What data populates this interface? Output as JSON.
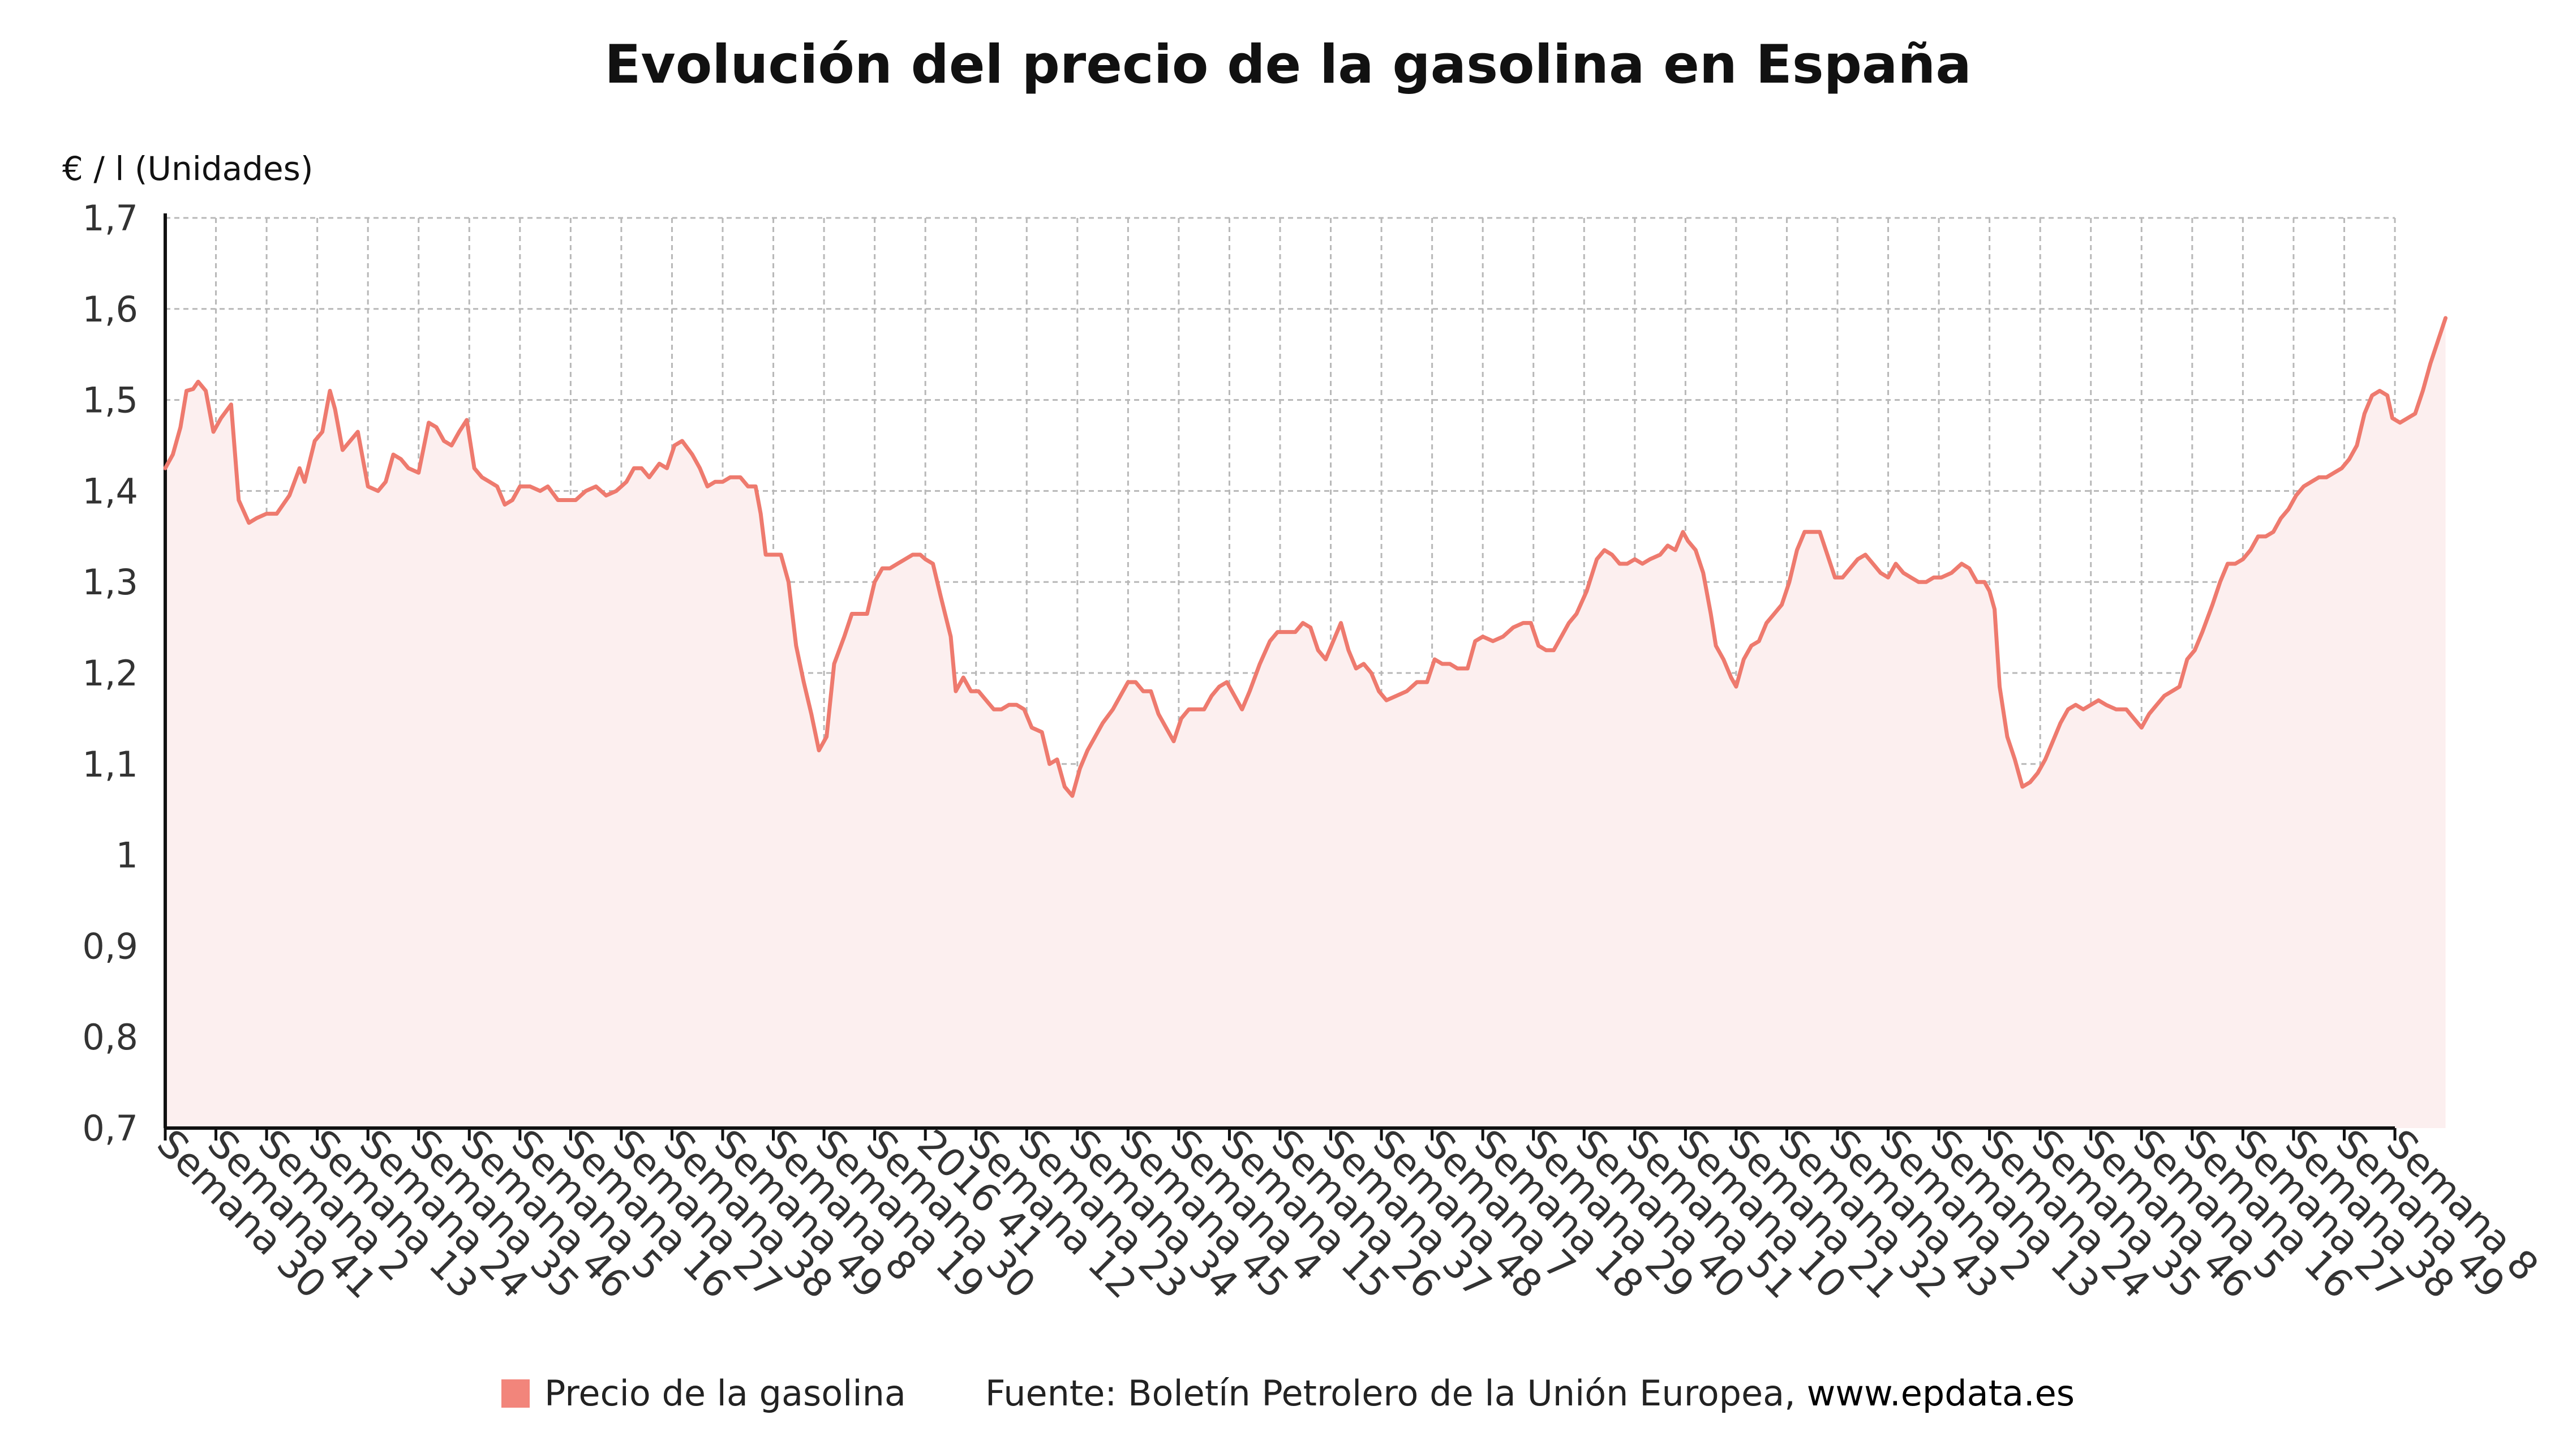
{
  "colors": {
    "series": "#ee7a6e",
    "legend_swatch": "#f2857b",
    "area_fill": "#fcefef",
    "grid": "#b8b8b8"
  },
  "legend": {
    "series_label": "Precio de la gasolina",
    "source_prefix": "Fuente: Boletín Petrolero de la Unión Europea, ",
    "source_url": "www.epdata.es"
  },
  "chart_data": {
    "type": "line",
    "title": "Evolución del precio de la gasolina en España",
    "ylabel": "€ / l (Unidades)",
    "xlabel": "",
    "ylim": [
      0.7,
      1.7
    ],
    "y_ticks": [
      "1,7",
      "1,6",
      "1,5",
      "1,4",
      "1,3",
      "1,2",
      "1,1",
      "1",
      "0,9",
      "0,8",
      "0,7"
    ],
    "x_ticks": [
      "Semana 30",
      "Semana 41",
      "Semana 2",
      "Semana 13",
      "Semana 24",
      "Semana 35",
      "Semana 46",
      "Semana 5",
      "Semana 16",
      "Semana 27",
      "Semana 38",
      "Semana 49",
      "Semana 8",
      "Semana 19",
      "Semana 30",
      "2016 41",
      "Semana 12",
      "Semana 23",
      "Semana 34",
      "Semana 45",
      "Semana 4",
      "Semana 15",
      "Semana 26",
      "Semana 37",
      "Semana 48",
      "Semana 7",
      "Semana 18",
      "Semana 29",
      "Semana 40",
      "Semana 51",
      "Semana 10",
      "Semana 21",
      "Semana 32",
      "Semana 43",
      "Semana 2",
      "Semana 13",
      "Semana 24",
      "Semana 35",
      "Semana 46",
      "Semana 5",
      "Semana 16",
      "Semana 27",
      "Semana 38",
      "Semana 49",
      "Semana 8"
    ],
    "grid": true,
    "legend_position": "bottom",
    "series": [
      {
        "name": "Precio de la gasolina",
        "points": [
          [
            0.0,
            1.425
          ],
          [
            0.15,
            1.44
          ],
          [
            0.3,
            1.47
          ],
          [
            0.42,
            1.51
          ],
          [
            0.55,
            1.512
          ],
          [
            0.65,
            1.52
          ],
          [
            0.8,
            1.51
          ],
          [
            0.95,
            1.465
          ],
          [
            1.1,
            1.48
          ],
          [
            1.3,
            1.495
          ],
          [
            1.45,
            1.39
          ],
          [
            1.65,
            1.365
          ],
          [
            1.8,
            1.37
          ],
          [
            2.0,
            1.375
          ],
          [
            2.2,
            1.375
          ],
          [
            2.45,
            1.395
          ],
          [
            2.65,
            1.425
          ],
          [
            2.75,
            1.41
          ],
          [
            2.95,
            1.455
          ],
          [
            3.1,
            1.465
          ],
          [
            3.25,
            1.51
          ],
          [
            3.35,
            1.49
          ],
          [
            3.5,
            1.445
          ],
          [
            3.65,
            1.455
          ],
          [
            3.8,
            1.465
          ],
          [
            4.0,
            1.405
          ],
          [
            4.2,
            1.4
          ],
          [
            4.35,
            1.41
          ],
          [
            4.5,
            1.44
          ],
          [
            4.65,
            1.435
          ],
          [
            4.8,
            1.425
          ],
          [
            5.0,
            1.42
          ],
          [
            5.2,
            1.475
          ],
          [
            5.35,
            1.47
          ],
          [
            5.5,
            1.455
          ],
          [
            5.65,
            1.45
          ],
          [
            5.8,
            1.465
          ],
          [
            5.95,
            1.478
          ],
          [
            6.1,
            1.425
          ],
          [
            6.25,
            1.415
          ],
          [
            6.4,
            1.41
          ],
          [
            6.55,
            1.405
          ],
          [
            6.7,
            1.385
          ],
          [
            6.85,
            1.39
          ],
          [
            7.0,
            1.405
          ],
          [
            7.2,
            1.405
          ],
          [
            7.4,
            1.4
          ],
          [
            7.55,
            1.405
          ],
          [
            7.75,
            1.39
          ],
          [
            7.95,
            1.39
          ],
          [
            8.1,
            1.39
          ],
          [
            8.3,
            1.4
          ],
          [
            8.5,
            1.405
          ],
          [
            8.7,
            1.395
          ],
          [
            8.9,
            1.4
          ],
          [
            9.1,
            1.41
          ],
          [
            9.25,
            1.425
          ],
          [
            9.4,
            1.425
          ],
          [
            9.55,
            1.415
          ],
          [
            9.75,
            1.43
          ],
          [
            9.9,
            1.425
          ],
          [
            10.05,
            1.45
          ],
          [
            10.2,
            1.455
          ],
          [
            10.4,
            1.44
          ],
          [
            10.55,
            1.425
          ],
          [
            10.7,
            1.405
          ],
          [
            10.85,
            1.41
          ],
          [
            11.0,
            1.41
          ],
          [
            11.15,
            1.415
          ],
          [
            11.35,
            1.415
          ],
          [
            11.5,
            1.405
          ],
          [
            11.65,
            1.405
          ],
          [
            11.75,
            1.375
          ],
          [
            11.85,
            1.33
          ],
          [
            12.0,
            1.33
          ],
          [
            12.15,
            1.33
          ],
          [
            12.3,
            1.3
          ],
          [
            12.45,
            1.23
          ],
          [
            12.6,
            1.19
          ],
          [
            12.75,
            1.155
          ],
          [
            12.9,
            1.115
          ],
          [
            13.05,
            1.13
          ],
          [
            13.2,
            1.21
          ],
          [
            13.4,
            1.24
          ],
          [
            13.55,
            1.265
          ],
          [
            13.7,
            1.265
          ],
          [
            13.85,
            1.265
          ],
          [
            14.0,
            1.3
          ],
          [
            14.15,
            1.315
          ],
          [
            14.3,
            1.315
          ],
          [
            14.45,
            1.32
          ],
          [
            14.6,
            1.325
          ],
          [
            14.75,
            1.33
          ],
          [
            14.9,
            1.33
          ],
          [
            15.0,
            1.325
          ],
          [
            15.15,
            1.32
          ],
          [
            15.3,
            1.285
          ],
          [
            15.5,
            1.24
          ],
          [
            15.6,
            1.18
          ],
          [
            15.75,
            1.195
          ],
          [
            15.9,
            1.18
          ],
          [
            16.05,
            1.18
          ],
          [
            16.2,
            1.17
          ],
          [
            16.35,
            1.16
          ],
          [
            16.5,
            1.16
          ],
          [
            16.65,
            1.165
          ],
          [
            16.8,
            1.165
          ],
          [
            16.95,
            1.16
          ],
          [
            17.1,
            1.14
          ],
          [
            17.3,
            1.135
          ],
          [
            17.45,
            1.1
          ],
          [
            17.6,
            1.105
          ],
          [
            17.75,
            1.075
          ],
          [
            17.9,
            1.065
          ],
          [
            18.05,
            1.095
          ],
          [
            18.2,
            1.115
          ],
          [
            18.35,
            1.13
          ],
          [
            18.5,
            1.145
          ],
          [
            18.7,
            1.16
          ],
          [
            18.85,
            1.175
          ],
          [
            19.0,
            1.19
          ],
          [
            19.15,
            1.19
          ],
          [
            19.3,
            1.18
          ],
          [
            19.45,
            1.18
          ],
          [
            19.6,
            1.155
          ],
          [
            19.75,
            1.14
          ],
          [
            19.9,
            1.125
          ],
          [
            20.05,
            1.15
          ],
          [
            20.2,
            1.16
          ],
          [
            20.35,
            1.16
          ],
          [
            20.5,
            1.16
          ],
          [
            20.65,
            1.175
          ],
          [
            20.8,
            1.185
          ],
          [
            20.95,
            1.19
          ],
          [
            21.1,
            1.175
          ],
          [
            21.25,
            1.16
          ],
          [
            21.4,
            1.18
          ],
          [
            21.6,
            1.21
          ],
          [
            21.8,
            1.235
          ],
          [
            21.95,
            1.245
          ],
          [
            22.1,
            1.245
          ],
          [
            22.3,
            1.245
          ],
          [
            22.45,
            1.255
          ],
          [
            22.6,
            1.25
          ],
          [
            22.75,
            1.225
          ],
          [
            22.9,
            1.215
          ],
          [
            23.05,
            1.235
          ],
          [
            23.2,
            1.255
          ],
          [
            23.35,
            1.225
          ],
          [
            23.5,
            1.205
          ],
          [
            23.65,
            1.21
          ],
          [
            23.8,
            1.2
          ],
          [
            23.95,
            1.18
          ],
          [
            24.1,
            1.17
          ],
          [
            24.3,
            1.175
          ],
          [
            24.5,
            1.18
          ],
          [
            24.7,
            1.19
          ],
          [
            24.9,
            1.19
          ],
          [
            25.05,
            1.215
          ],
          [
            25.2,
            1.21
          ],
          [
            25.35,
            1.21
          ],
          [
            25.5,
            1.205
          ],
          [
            25.7,
            1.205
          ],
          [
            25.85,
            1.235
          ],
          [
            26.0,
            1.24
          ],
          [
            26.2,
            1.235
          ],
          [
            26.4,
            1.24
          ],
          [
            26.6,
            1.25
          ],
          [
            26.8,
            1.255
          ],
          [
            26.95,
            1.255
          ],
          [
            27.1,
            1.23
          ],
          [
            27.25,
            1.225
          ],
          [
            27.4,
            1.225
          ],
          [
            27.55,
            1.24
          ],
          [
            27.7,
            1.255
          ],
          [
            27.85,
            1.265
          ],
          [
            28.05,
            1.29
          ],
          [
            28.25,
            1.325
          ],
          [
            28.4,
            1.335
          ],
          [
            28.55,
            1.33
          ],
          [
            28.7,
            1.32
          ],
          [
            28.85,
            1.32
          ],
          [
            29.0,
            1.325
          ],
          [
            29.15,
            1.32
          ],
          [
            29.3,
            1.325
          ],
          [
            29.5,
            1.33
          ],
          [
            29.65,
            1.34
          ],
          [
            29.8,
            1.335
          ],
          [
            29.95,
            1.355
          ],
          [
            30.05,
            1.345
          ],
          [
            30.2,
            1.335
          ],
          [
            30.35,
            1.31
          ],
          [
            30.5,
            1.265
          ],
          [
            30.6,
            1.23
          ],
          [
            30.75,
            1.215
          ],
          [
            30.9,
            1.195
          ],
          [
            31.0,
            1.185
          ],
          [
            31.15,
            1.215
          ],
          [
            31.3,
            1.23
          ],
          [
            31.45,
            1.235
          ],
          [
            31.6,
            1.255
          ],
          [
            31.75,
            1.265
          ],
          [
            31.9,
            1.275
          ],
          [
            32.05,
            1.3
          ],
          [
            32.2,
            1.335
          ],
          [
            32.35,
            1.355
          ],
          [
            32.5,
            1.355
          ],
          [
            32.65,
            1.355
          ],
          [
            32.8,
            1.33
          ],
          [
            32.95,
            1.305
          ],
          [
            33.1,
            1.305
          ],
          [
            33.25,
            1.315
          ],
          [
            33.4,
            1.325
          ],
          [
            33.55,
            1.33
          ],
          [
            33.7,
            1.32
          ],
          [
            33.85,
            1.31
          ],
          [
            34.0,
            1.305
          ],
          [
            34.15,
            1.32
          ],
          [
            34.3,
            1.31
          ],
          [
            34.45,
            1.305
          ],
          [
            34.6,
            1.3
          ],
          [
            34.75,
            1.3
          ],
          [
            34.9,
            1.305
          ],
          [
            35.05,
            1.305
          ],
          [
            35.25,
            1.31
          ],
          [
            35.45,
            1.32
          ],
          [
            35.6,
            1.315
          ],
          [
            35.75,
            1.3
          ],
          [
            35.9,
            1.3
          ],
          [
            36.0,
            1.29
          ],
          [
            36.1,
            1.27
          ],
          [
            36.2,
            1.185
          ],
          [
            36.35,
            1.13
          ],
          [
            36.5,
            1.105
          ],
          [
            36.65,
            1.075
          ],
          [
            36.8,
            1.08
          ],
          [
            36.95,
            1.09
          ],
          [
            37.1,
            1.105
          ],
          [
            37.25,
            1.125
          ],
          [
            37.4,
            1.145
          ],
          [
            37.55,
            1.16
          ],
          [
            37.7,
            1.165
          ],
          [
            37.85,
            1.16
          ],
          [
            38.0,
            1.165
          ],
          [
            38.15,
            1.17
          ],
          [
            38.3,
            1.165
          ],
          [
            38.5,
            1.16
          ],
          [
            38.7,
            1.16
          ],
          [
            38.85,
            1.15
          ],
          [
            39.0,
            1.14
          ],
          [
            39.15,
            1.155
          ],
          [
            39.3,
            1.165
          ],
          [
            39.45,
            1.175
          ],
          [
            39.6,
            1.18
          ],
          [
            39.75,
            1.185
          ],
          [
            39.9,
            1.215
          ],
          [
            40.05,
            1.225
          ],
          [
            40.2,
            1.245
          ],
          [
            40.4,
            1.275
          ],
          [
            40.55,
            1.3
          ],
          [
            40.7,
            1.32
          ],
          [
            40.85,
            1.32
          ],
          [
            41.0,
            1.325
          ],
          [
            41.15,
            1.335
          ],
          [
            41.3,
            1.35
          ],
          [
            41.45,
            1.35
          ],
          [
            41.6,
            1.355
          ],
          [
            41.75,
            1.37
          ],
          [
            41.9,
            1.38
          ],
          [
            42.05,
            1.395
          ],
          [
            42.2,
            1.405
          ],
          [
            42.35,
            1.41
          ],
          [
            42.5,
            1.415
          ],
          [
            42.65,
            1.415
          ],
          [
            42.8,
            1.42
          ],
          [
            42.95,
            1.425
          ],
          [
            43.1,
            1.435
          ],
          [
            43.25,
            1.45
          ],
          [
            43.4,
            1.485
          ],
          [
            43.55,
            1.505
          ],
          [
            43.7,
            1.51
          ],
          [
            43.85,
            1.505
          ],
          [
            43.95,
            1.48
          ],
          [
            44.1,
            1.475
          ],
          [
            44.25,
            1.48
          ],
          [
            44.4,
            1.485
          ],
          [
            44.55,
            1.51
          ],
          [
            44.7,
            1.54
          ],
          [
            44.85,
            1.565
          ],
          [
            45.0,
            1.59
          ]
        ]
      }
    ]
  }
}
